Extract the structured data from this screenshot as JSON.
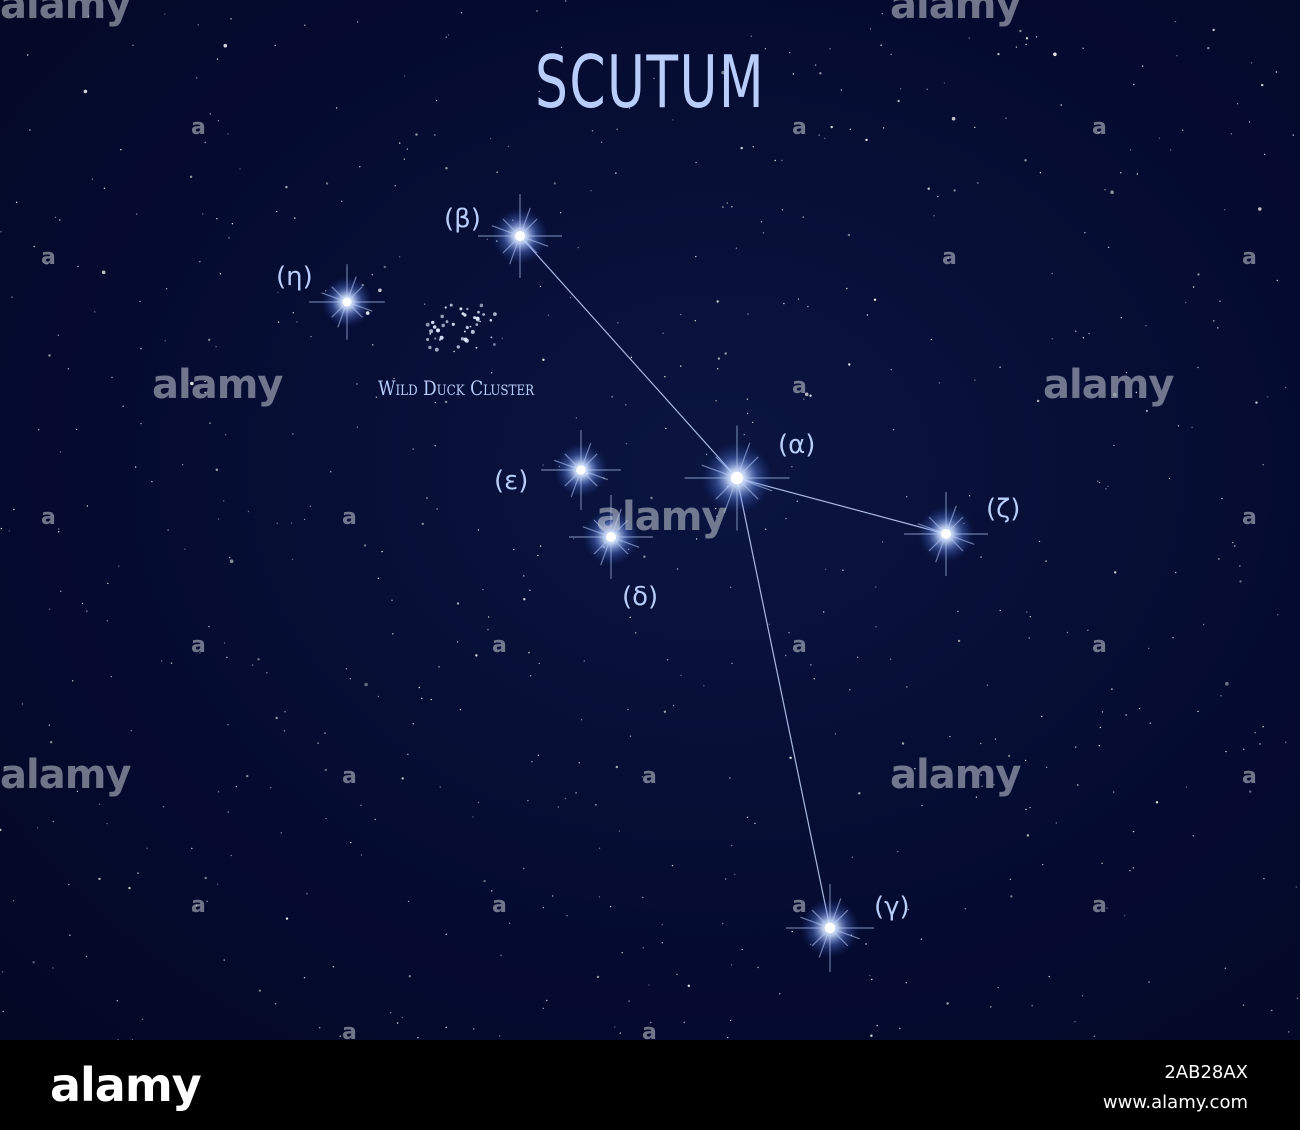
{
  "title": "SCUTUM",
  "stars": [
    {
      "id": "beta",
      "label": "(β)"
    },
    {
      "id": "eta",
      "label": "(η)"
    },
    {
      "id": "alpha",
      "label": "(α)"
    },
    {
      "id": "epsilon",
      "label": "(ε)"
    },
    {
      "id": "zeta",
      "label": "(ζ)"
    },
    {
      "id": "delta",
      "label": "(δ)"
    },
    {
      "id": "gamma",
      "label": "(γ)"
    }
  ],
  "cluster_label": "Wild Duck Cluster",
  "watermark": "alamy",
  "watermark_small": "a",
  "footer": {
    "logo": "alamy",
    "image_id": "2AB28AX",
    "url": "www.alamy.com"
  },
  "colors": {
    "sky": "#040a2b",
    "label": "#b9cdfa",
    "star_core": "#ffffff",
    "star_glow": "#8fb4ff"
  }
}
